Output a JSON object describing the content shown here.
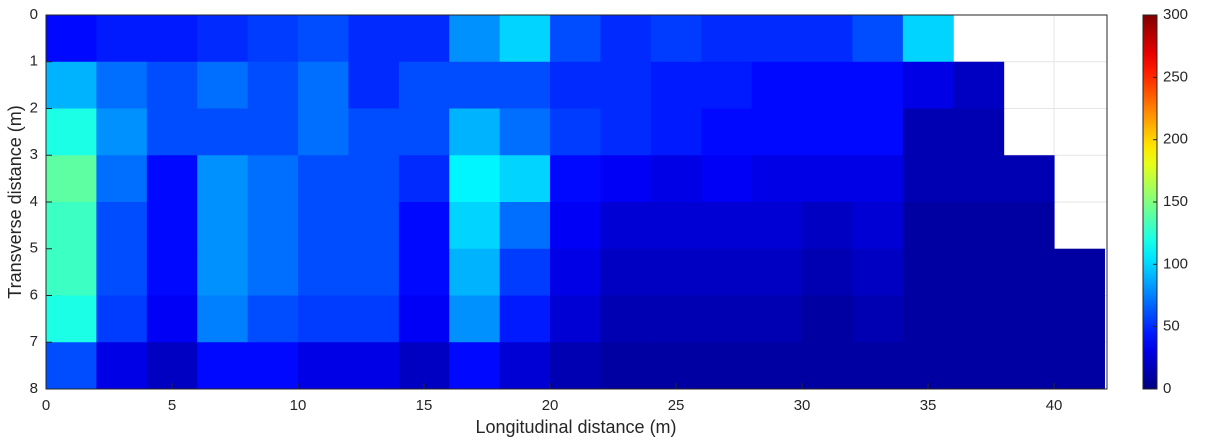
{
  "chart_data": {
    "type": "heatmap",
    "xlabel": "Longitudinal distance (m)",
    "ylabel": "Transverse distance (m)",
    "xlim": [
      0,
      42.1
    ],
    "ylim": [
      0,
      8
    ],
    "y_reversed": true,
    "xticks": [
      0,
      5,
      10,
      15,
      20,
      25,
      30,
      35,
      40
    ],
    "yticks": [
      0,
      1,
      2,
      3,
      4,
      5,
      6,
      7,
      8
    ],
    "grid": true,
    "colormap": "jet",
    "zlim": [
      0,
      300
    ],
    "zticks": [
      0,
      50,
      100,
      150,
      200,
      250,
      300
    ],
    "xbins": [
      0,
      2,
      4,
      6,
      8,
      10,
      12,
      14,
      16,
      18,
      20,
      22,
      24,
      26,
      28,
      30,
      32,
      34,
      36,
      38,
      40,
      42
    ],
    "ybins": [
      0,
      1,
      2,
      3,
      4,
      5,
      6,
      7,
      8
    ],
    "z": [
      [
        40,
        45,
        45,
        50,
        55,
        60,
        50,
        50,
        80,
        100,
        60,
        50,
        55,
        50,
        50,
        50,
        60,
        100,
        null,
        null,
        null
      ],
      [
        90,
        70,
        60,
        70,
        60,
        70,
        50,
        60,
        60,
        60,
        50,
        50,
        45,
        45,
        40,
        40,
        40,
        30,
        20,
        null,
        null
      ],
      [
        120,
        80,
        60,
        60,
        60,
        70,
        60,
        60,
        90,
        70,
        55,
        50,
        45,
        40,
        40,
        40,
        40,
        15,
        15,
        null,
        null
      ],
      [
        140,
        70,
        40,
        80,
        70,
        60,
        60,
        50,
        110,
        100,
        40,
        35,
        30,
        35,
        30,
        30,
        30,
        15,
        15,
        15,
        null
      ],
      [
        130,
        60,
        40,
        80,
        70,
        60,
        60,
        40,
        100,
        70,
        35,
        25,
        25,
        25,
        25,
        20,
        25,
        10,
        10,
        10,
        null
      ],
      [
        130,
        60,
        40,
        80,
        70,
        60,
        60,
        40,
        90,
        55,
        30,
        20,
        20,
        20,
        20,
        15,
        20,
        10,
        10,
        10,
        10
      ],
      [
        120,
        55,
        35,
        75,
        60,
        55,
        55,
        35,
        80,
        45,
        25,
        15,
        15,
        15,
        15,
        10,
        15,
        10,
        10,
        10,
        10
      ],
      [
        60,
        30,
        20,
        40,
        40,
        30,
        30,
        20,
        40,
        25,
        15,
        10,
        10,
        10,
        10,
        10,
        10,
        10,
        10,
        10,
        10
      ]
    ]
  }
}
